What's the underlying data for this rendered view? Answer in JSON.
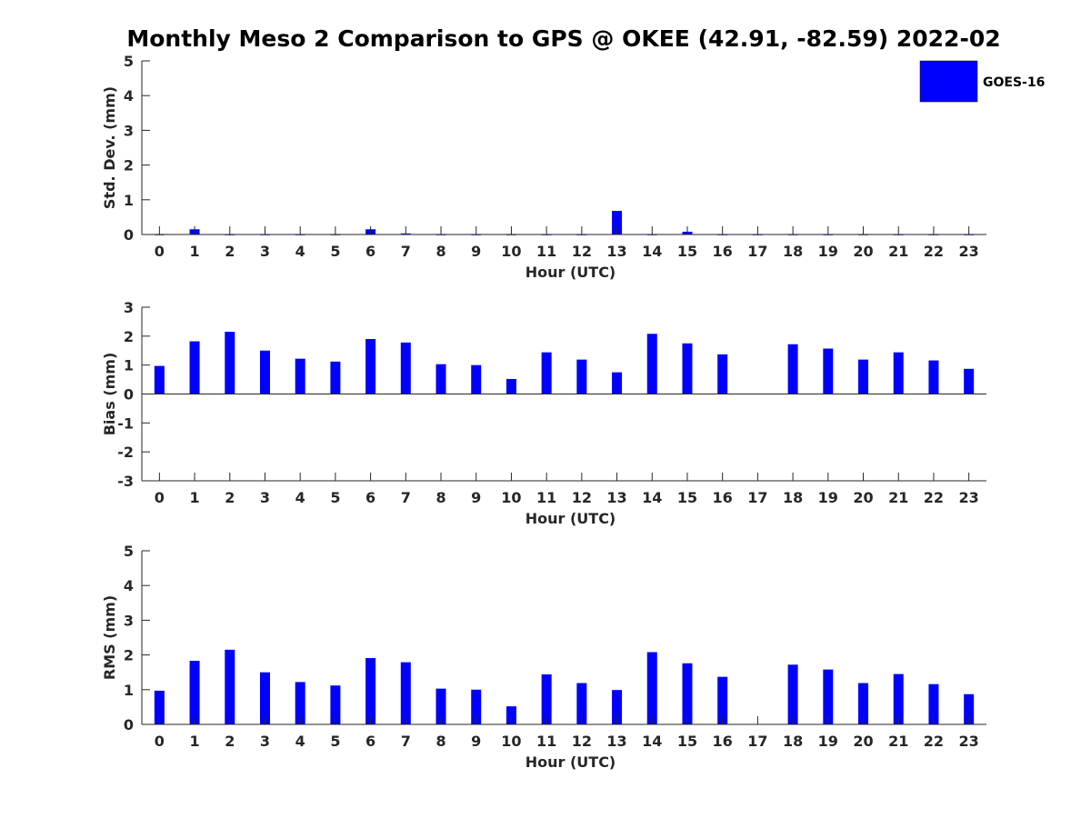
{
  "title": "Monthly Meso 2 Comparison to GPS @ OKEE (42.91, -82.59) 2022-02",
  "legend": {
    "label": "GOES-16"
  },
  "colors": {
    "bar": "#0000ff",
    "axis": "#262626",
    "legend_edge": "#000000"
  },
  "chart_data": [
    {
      "type": "bar",
      "title": "Monthly Meso 2 Comparison to GPS @ OKEE (42.91, -82.59) 2022-02",
      "xlabel": "Hour (UTC)",
      "ylabel": "Std. Dev. (mm)",
      "ylim": [
        0,
        5
      ],
      "yticks": [
        "0",
        "1",
        "2",
        "3",
        "4",
        "5"
      ],
      "categories": [
        "0",
        "1",
        "2",
        "3",
        "4",
        "5",
        "6",
        "7",
        "8",
        "9",
        "10",
        "11",
        "12",
        "13",
        "14",
        "15",
        "16",
        "17",
        "18",
        "19",
        "20",
        "21",
        "22",
        "23"
      ],
      "series": [
        {
          "name": "GOES-16",
          "values": [
            0,
            0.15,
            0,
            0,
            0,
            0,
            0.15,
            0.03,
            0,
            0,
            0,
            0,
            0,
            0.68,
            0,
            0.08,
            0,
            0,
            0,
            0,
            0,
            0,
            0,
            0
          ]
        }
      ],
      "legend": "top-right",
      "grid": false
    },
    {
      "type": "bar",
      "xlabel": "Hour (UTC)",
      "ylabel": "Bias (mm)",
      "ylim": [
        -3,
        3
      ],
      "yticks": [
        "-3",
        "-2",
        "-1",
        "0",
        "1",
        "2",
        "3"
      ],
      "categories": [
        "0",
        "1",
        "2",
        "3",
        "4",
        "5",
        "6",
        "7",
        "8",
        "9",
        "10",
        "11",
        "12",
        "13",
        "14",
        "15",
        "16",
        "17",
        "18",
        "19",
        "20",
        "21",
        "22",
        "23"
      ],
      "series": [
        {
          "name": "GOES-16",
          "values": [
            0.97,
            1.82,
            2.15,
            1.5,
            1.22,
            1.12,
            1.9,
            1.78,
            1.03,
            1.0,
            0.52,
            1.44,
            1.19,
            0.75,
            2.08,
            1.75,
            1.37,
            null,
            1.72,
            1.57,
            1.19,
            1.44,
            1.16,
            0.87
          ]
        }
      ],
      "grid": false
    },
    {
      "type": "bar",
      "xlabel": "Hour (UTC)",
      "ylabel": "RMS (mm)",
      "ylim": [
        0,
        5
      ],
      "yticks": [
        "0",
        "1",
        "2",
        "3",
        "4",
        "5"
      ],
      "categories": [
        "0",
        "1",
        "2",
        "3",
        "4",
        "5",
        "6",
        "7",
        "8",
        "9",
        "10",
        "11",
        "12",
        "13",
        "14",
        "15",
        "16",
        "17",
        "18",
        "19",
        "20",
        "21",
        "22",
        "23"
      ],
      "series": [
        {
          "name": "GOES-16",
          "values": [
            0.97,
            1.83,
            2.15,
            1.5,
            1.22,
            1.12,
            1.91,
            1.79,
            1.03,
            1.0,
            0.52,
            1.44,
            1.19,
            0.99,
            2.08,
            1.76,
            1.37,
            null,
            1.72,
            1.58,
            1.19,
            1.45,
            1.16,
            0.87
          ]
        }
      ],
      "grid": false
    }
  ]
}
